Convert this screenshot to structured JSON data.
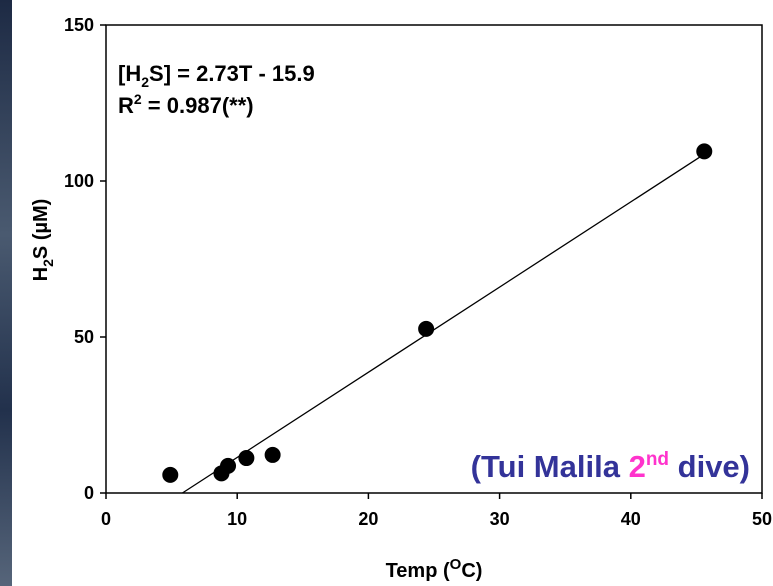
{
  "chart_data": {
    "type": "scatter",
    "x": [
      4.9,
      8.8,
      9.3,
      10.7,
      12.7,
      24.4,
      45.6
    ],
    "y": [
      5.8,
      6.3,
      8.7,
      11.2,
      12.2,
      52.6,
      109.5
    ],
    "color": "#000000",
    "trendline": {
      "slope": 2.73,
      "intercept": -15.9,
      "color": "#000000"
    },
    "xlim": [
      0,
      50
    ],
    "xticks": [
      0,
      10,
      20,
      30,
      40,
      50
    ],
    "ylim": [
      0,
      150
    ],
    "yticks": [
      0,
      50,
      100,
      150
    ],
    "x_label": [
      "Temp (",
      "O",
      "C)"
    ],
    "y_label": [
      "H",
      "2",
      "S (µM)"
    ],
    "equation": [
      "[H",
      "2",
      "S] = 2.73T - 15.9"
    ],
    "r_squared": [
      "R",
      "2",
      " = 0.987(**)"
    ],
    "annotation": [
      "(Tui Malila ",
      "2",
      "nd",
      " dive)"
    ]
  }
}
